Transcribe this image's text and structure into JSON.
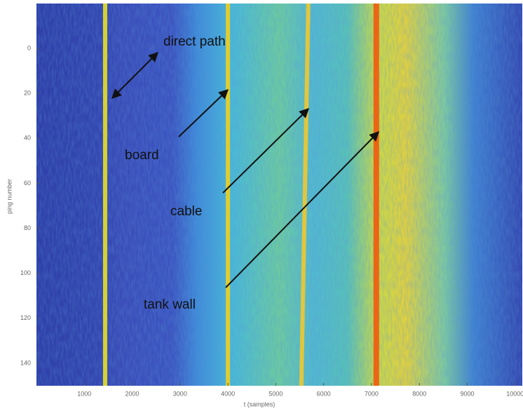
{
  "chart_data": {
    "type": "heatmap",
    "xlabel": "t (samples)",
    "ylabel": "ping number",
    "xlim": [
      0,
      10150
    ],
    "ylim": [
      150,
      -20
    ],
    "xticks": [
      1000,
      2000,
      3000,
      4000,
      5000,
      6000,
      7000,
      8000,
      9000,
      10000
    ],
    "yticks": [
      0,
      20,
      40,
      60,
      80,
      100,
      120,
      140
    ],
    "echoes": [
      {
        "text": "direct path",
        "x": 1435,
        "color": "#e8e020"
      },
      {
        "text": "board",
        "x": 4000,
        "color": "#f0d020"
      },
      {
        "text": "cable",
        "x": 5680,
        "color": "#f0c830"
      },
      {
        "text": "tank wall",
        "x": 7100,
        "color": "#f05a10"
      }
    ]
  }
}
